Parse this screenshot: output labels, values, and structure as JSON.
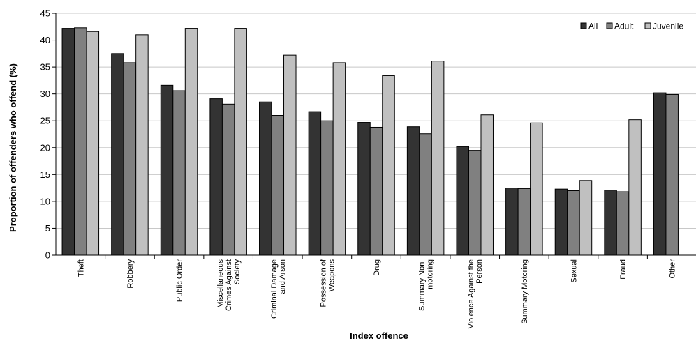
{
  "chart_data": {
    "type": "bar",
    "title": "",
    "xlabel": "Index offence",
    "ylabel": "Proportion of offenders who offend (%)",
    "ylim": [
      0,
      45
    ],
    "yticks": [
      0,
      5,
      10,
      15,
      20,
      25,
      30,
      35,
      40,
      45
    ],
    "grid": true,
    "legend_position": "top-right",
    "categories": [
      [
        "Theft"
      ],
      [
        "Robbery"
      ],
      [
        "Public Order"
      ],
      [
        "Miscellaneous",
        "Crimes Against",
        "Society"
      ],
      [
        "Criminal Damage",
        "and Arson"
      ],
      [
        "Possession of",
        "Weapons"
      ],
      [
        "Drug"
      ],
      [
        "Summary Non-",
        "motoring"
      ],
      [
        "Violence Against the",
        "Person"
      ],
      [
        "Summary Motoring"
      ],
      [
        "Sexual"
      ],
      [
        "Fraud"
      ],
      [
        "Other"
      ]
    ],
    "series": [
      {
        "name": "All",
        "color": "#333333",
        "values": [
          42.2,
          37.5,
          31.6,
          29.1,
          28.5,
          26.7,
          24.7,
          23.9,
          20.2,
          12.5,
          12.3,
          12.1,
          30.2
        ]
      },
      {
        "name": "Adult",
        "color": "#808080",
        "values": [
          42.3,
          35.8,
          30.6,
          28.1,
          26.0,
          25.0,
          23.8,
          22.6,
          19.5,
          12.4,
          12.0,
          11.8,
          29.9
        ]
      },
      {
        "name": "Juvenile",
        "color": "#c0c0c0",
        "values": [
          41.6,
          41.0,
          42.2,
          42.2,
          37.2,
          35.8,
          33.4,
          36.1,
          26.1,
          24.6,
          13.9,
          25.2,
          null
        ]
      }
    ]
  }
}
